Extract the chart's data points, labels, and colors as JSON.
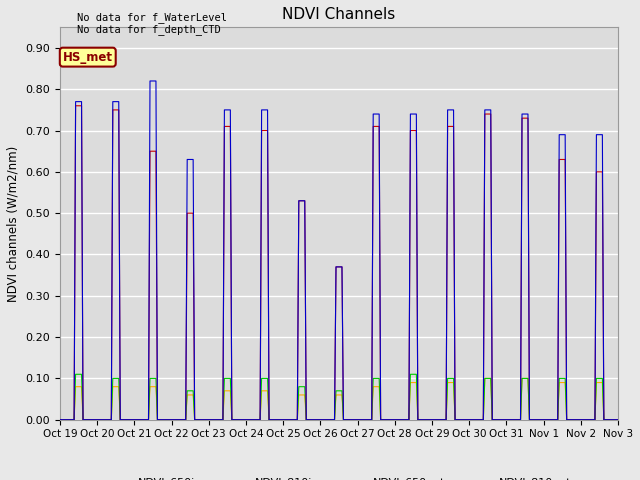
{
  "title": "NDVI Channels",
  "ylabel": "NDVI channels (W/m2/nm)",
  "ylim": [
    0.0,
    0.95
  ],
  "yticks": [
    0.0,
    0.1,
    0.2,
    0.3,
    0.4,
    0.5,
    0.6,
    0.7,
    0.8,
    0.9
  ],
  "fig_facecolor": "#e8e8e8",
  "axes_bg_color": "#dcdcdc",
  "text_annotations": [
    "No data for f_WaterLevel",
    "No data for f_depth_CTD"
  ],
  "box_label": "HS_met",
  "box_facecolor": "#ffff99",
  "box_edgecolor": "#8b0000",
  "box_textcolor": "#8b0000",
  "colors": {
    "NDVI_650in": "#cc0000",
    "NDVI_810in": "#0000cc",
    "NDVI_650out": "#00cc00",
    "NDVI_810out": "#ffaa00"
  },
  "x_tick_labels": [
    "Oct 19",
    "Oct 20",
    "Oct 21",
    "Oct 22",
    "Oct 23",
    "Oct 24",
    "Oct 25",
    "Oct 26",
    "Oct 27",
    "Oct 28",
    "Oct 29",
    "Oct 30",
    "Oct 31",
    "Nov 1",
    "Nov 2",
    "Nov 3"
  ],
  "num_days": 15,
  "peaks_810in": [
    0.77,
    0.77,
    0.82,
    0.63,
    0.75,
    0.75,
    0.53,
    0.37,
    0.74,
    0.74,
    0.75,
    0.75,
    0.74,
    0.69,
    0.69
  ],
  "peaks_650in": [
    0.76,
    0.75,
    0.65,
    0.5,
    0.71,
    0.7,
    0.53,
    0.37,
    0.71,
    0.7,
    0.71,
    0.74,
    0.73,
    0.63,
    0.6
  ],
  "peaks_650out": [
    0.11,
    0.1,
    0.1,
    0.07,
    0.1,
    0.1,
    0.08,
    0.07,
    0.1,
    0.11,
    0.1,
    0.1,
    0.1,
    0.1,
    0.1
  ],
  "peaks_810out": [
    0.08,
    0.08,
    0.08,
    0.06,
    0.07,
    0.07,
    0.06,
    0.06,
    0.08,
    0.09,
    0.09,
    0.1,
    0.1,
    0.09,
    0.09
  ],
  "base_value": 0.0,
  "grid_color": "#ffffff",
  "grid_linewidth": 1.0
}
